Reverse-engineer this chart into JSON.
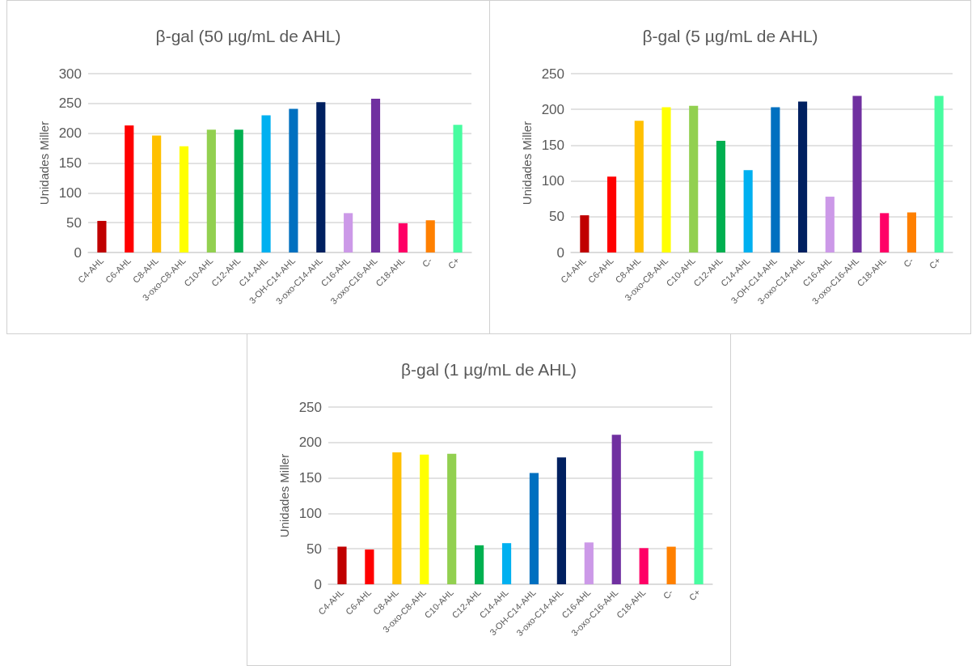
{
  "chart_data": [
    {
      "type": "bar",
      "title": "β-gal (50 µg/mL de AHL)",
      "ylabel": "Unidades Miller",
      "categories": [
        "C4-AHL",
        "C6-AHL",
        "C8-AHL",
        "3-oxo-C8-AHL",
        "C10-AHL",
        "C12-AHL",
        "C14-AHL",
        "3-OH-C14-AHL",
        "3-oxo-C14-AHL",
        "C16-AHL",
        "3-oxo-C16-AHL",
        "C18-AHL",
        "C-",
        "C+"
      ],
      "values": [
        53,
        213,
        196,
        178,
        206,
        206,
        230,
        241,
        252,
        66,
        258,
        49,
        54,
        214
      ],
      "colors": [
        "#c00000",
        "#ff0000",
        "#ffc000",
        "#ffff00",
        "#92d050",
        "#00b050",
        "#00b0f0",
        "#0070c0",
        "#002060",
        "#cc99e8",
        "#7030a0",
        "#ff0066",
        "#ff8000",
        "#47fca0"
      ],
      "ylim": [
        0,
        300
      ],
      "yticks": [
        0,
        50,
        100,
        150,
        200,
        250,
        300
      ],
      "grid": "y"
    },
    {
      "type": "bar",
      "title": "β-gal (5 µg/mL de AHL)",
      "ylabel": "Unidades Miller",
      "categories": [
        "C4-AHL",
        "C6-AHL",
        "C8-AHL",
        "3-oxo-C8-AHL",
        "C10-AHL",
        "C12-AHL",
        "C14-AHL",
        "3-OH-C14-AHL",
        "3-oxo-C14-AHL",
        "C16-AHL",
        "3-oxo-C16-AHL",
        "C18-AHL",
        "C-",
        "C+"
      ],
      "values": [
        52,
        106,
        184,
        203,
        205,
        156,
        115,
        203,
        211,
        78,
        219,
        55,
        56,
        219
      ],
      "colors": [
        "#c00000",
        "#ff0000",
        "#ffc000",
        "#ffff00",
        "#92d050",
        "#00b050",
        "#00b0f0",
        "#0070c0",
        "#002060",
        "#cc99e8",
        "#7030a0",
        "#ff0066",
        "#ff8000",
        "#47fca0"
      ],
      "ylim": [
        0,
        250
      ],
      "yticks": [
        0,
        50,
        100,
        150,
        200,
        250
      ],
      "grid": "y"
    },
    {
      "type": "bar",
      "title": "β-gal (1 µg/mL de AHL)",
      "ylabel": "Unidades Miller",
      "categories": [
        "C4-AHL",
        "C6-AHL",
        "C8-AHL",
        "3-oxo-C8-AHL",
        "C10-AHL",
        "C12-AHL",
        "C14-AHL",
        "3-OH-C14-AHL",
        "3-oxo-C14-AHL",
        "C16-AHL",
        "3-oxo-C16-AHL",
        "C18-AHL",
        "C-",
        "C+"
      ],
      "values": [
        53,
        49,
        186,
        183,
        184,
        55,
        58,
        157,
        179,
        59,
        211,
        51,
        53,
        188
      ],
      "colors": [
        "#c00000",
        "#ff0000",
        "#ffc000",
        "#ffff00",
        "#92d050",
        "#00b050",
        "#00b0f0",
        "#0070c0",
        "#002060",
        "#cc99e8",
        "#7030a0",
        "#ff0066",
        "#ff8000",
        "#47fca0"
      ],
      "ylim": [
        0,
        250
      ],
      "yticks": [
        0,
        50,
        100,
        150,
        200,
        250
      ],
      "grid": "y"
    }
  ]
}
